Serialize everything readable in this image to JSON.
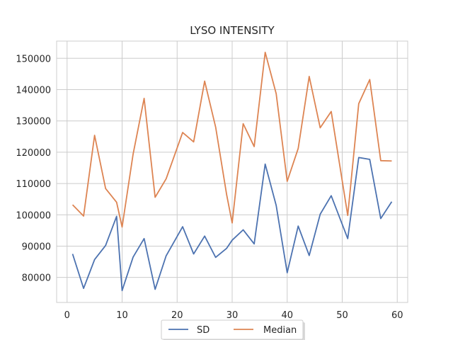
{
  "chart_data": {
    "type": "line",
    "title": "LYSO INTENSITY",
    "xlabel": "",
    "ylabel": "",
    "xlim": [
      -1.9,
      61.9
    ],
    "ylim": [
      72000,
      155500
    ],
    "xticks": [
      0,
      10,
      20,
      30,
      40,
      50,
      60
    ],
    "xtick_labels": [
      "0",
      "10",
      "20",
      "30",
      "40",
      "50",
      "60"
    ],
    "yticks": [
      80000,
      90000,
      100000,
      110000,
      120000,
      130000,
      140000,
      150000
    ],
    "ytick_labels": [
      "80000",
      "90000",
      "100000",
      "110000",
      "120000",
      "130000",
      "140000",
      "150000"
    ],
    "grid": true,
    "legend_position": "bottom-center",
    "x": [
      1,
      3,
      5,
      7,
      9,
      10,
      12,
      14,
      16,
      18,
      21,
      23,
      25,
      27,
      29,
      30,
      32,
      34,
      36,
      38,
      40,
      42,
      44,
      46,
      48,
      51,
      53,
      55,
      57,
      59
    ],
    "series": [
      {
        "name": "SD",
        "color": "#4c72b0",
        "values": [
          87500,
          76500,
          85700,
          90200,
          99500,
          75800,
          86500,
          92400,
          76200,
          86900,
          96200,
          87500,
          93200,
          86400,
          89300,
          91900,
          95200,
          90700,
          116200,
          103000,
          81500,
          96400,
          87000,
          100200,
          106100,
          92400,
          118300,
          117700,
          98800,
          104200
        ]
      },
      {
        "name": "Median",
        "color": "#dd8452",
        "values": [
          103200,
          99600,
          125400,
          108400,
          104000,
          96100,
          119400,
          137200,
          105600,
          111500,
          126300,
          123300,
          142700,
          128000,
          106400,
          97400,
          129100,
          121800,
          151900,
          138700,
          110700,
          121200,
          144200,
          127800,
          133000,
          99800,
          135500,
          143200,
          117300,
          117200
        ]
      }
    ]
  }
}
